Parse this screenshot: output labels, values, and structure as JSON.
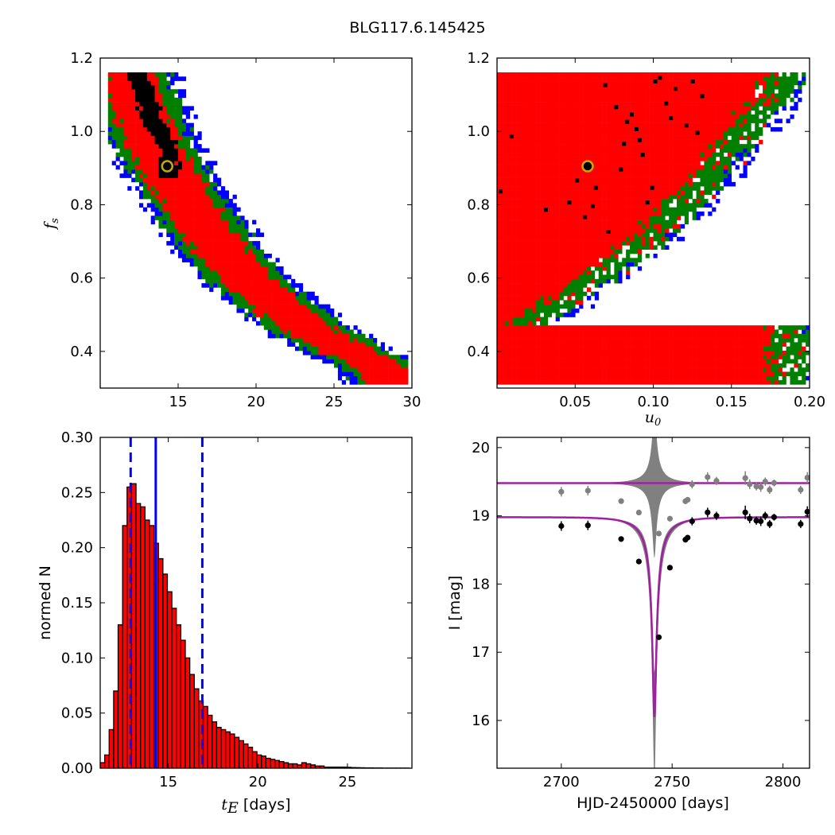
{
  "figure": {
    "suptitle": "BLG117.6.145425"
  },
  "colors": {
    "black": "#000000",
    "red": "#ff0000",
    "green": "#007f00",
    "blue": "#0000ff",
    "gray": "#808080",
    "magenta": "#a020a0",
    "marker_edge": "#c8a800"
  },
  "chart_data": [
    {
      "type": "heatmap",
      "panel": "tE_vs_fs",
      "xlim": [
        10,
        30
      ],
      "ylim": [
        0.3,
        1.2
      ],
      "xticks": [
        "15",
        "20",
        "25",
        "30"
      ],
      "yticks": [
        "0.4",
        "0.6",
        "0.8",
        "1.0",
        "1.2"
      ],
      "xlabel": "",
      "ylabel": "f_s",
      "ylabel_main": "f",
      "ylabel_sub": "s",
      "best_fit": {
        "x": 14.3,
        "y": 0.905
      },
      "band_center": [
        [
          11.8,
          1.15
        ],
        [
          12.5,
          1.05
        ],
        [
          13.3,
          0.96
        ],
        [
          14.3,
          0.88
        ],
        [
          15.5,
          0.8
        ],
        [
          16.8,
          0.72
        ],
        [
          18.2,
          0.64
        ],
        [
          19.8,
          0.57
        ],
        [
          21.5,
          0.51
        ],
        [
          23.5,
          0.45
        ],
        [
          25.5,
          0.4
        ],
        [
          27.5,
          0.36
        ],
        [
          28.5,
          0.33
        ]
      ],
      "band_half_widths_x": {
        "black": 0.8,
        "red": 1.7,
        "green": 2.5,
        "blue": 3.1
      },
      "black_core": [
        [
          12.3,
          1.15
        ],
        [
          13.0,
          1.06
        ],
        [
          13.6,
          1.0
        ],
        [
          14.3,
          0.94
        ]
      ]
    },
    {
      "type": "heatmap",
      "panel": "u0_vs_fs",
      "xlim": [
        0.0,
        0.2
      ],
      "ylim": [
        0.3,
        1.2
      ],
      "xticks": [
        "0.05",
        "0.10",
        "0.15",
        "0.20"
      ],
      "yticks": [
        "0.4",
        "0.6",
        "0.8",
        "1.0",
        "1.2"
      ],
      "xlabel": "u_0",
      "xlabel_main": "u",
      "xlabel_sub": "0",
      "ylabel": "",
      "best_fit": {
        "x": 0.058,
        "y": 0.905
      },
      "edge": [
        [
          0.0,
          0.46
        ],
        [
          0.02,
          0.5
        ],
        [
          0.04,
          0.56
        ],
        [
          0.06,
          0.62
        ],
        [
          0.08,
          0.68
        ],
        [
          0.1,
          0.76
        ],
        [
          0.12,
          0.85
        ],
        [
          0.14,
          0.96
        ],
        [
          0.16,
          1.06
        ],
        [
          0.175,
          1.15
        ]
      ],
      "scatter_black": [
        [
          0.001,
          0.83
        ],
        [
          0.008,
          0.98
        ],
        [
          0.03,
          0.78
        ],
        [
          0.045,
          0.8
        ],
        [
          0.05,
          0.86
        ],
        [
          0.055,
          0.76
        ],
        [
          0.06,
          0.79
        ],
        [
          0.062,
          0.84
        ],
        [
          0.07,
          0.72
        ],
        [
          0.078,
          0.89
        ],
        [
          0.08,
          0.96
        ],
        [
          0.082,
          1.02
        ],
        [
          0.085,
          1.04
        ],
        [
          0.088,
          1.0
        ],
        [
          0.09,
          0.97
        ],
        [
          0.092,
          0.93
        ],
        [
          0.095,
          0.8
        ],
        [
          0.098,
          0.84
        ],
        [
          0.1,
          1.13
        ],
        [
          0.103,
          1.14
        ],
        [
          0.107,
          1.07
        ],
        [
          0.11,
          1.03
        ],
        [
          0.113,
          1.11
        ],
        [
          0.12,
          1.01
        ],
        [
          0.124,
          1.13
        ],
        [
          0.127,
          0.99
        ],
        [
          0.13,
          1.09
        ],
        [
          0.075,
          1.06
        ],
        [
          0.068,
          1.12
        ]
      ]
    },
    {
      "type": "bar",
      "panel": "tE_histogram",
      "xlim": [
        11.2,
        28.6
      ],
      "ylim": [
        0.0,
        0.3
      ],
      "xticks": [
        "15",
        "20",
        "25"
      ],
      "yticks": [
        "0.00",
        "0.05",
        "0.10",
        "0.15",
        "0.20",
        "0.25",
        "0.30"
      ],
      "xlabel_math": "t",
      "xlabel_sub": "E",
      "xlabel_text": "[days]",
      "ylabel": "normed N",
      "bin_start": 11.2,
      "bin_width": 0.25,
      "values": [
        0.005,
        0.012,
        0.035,
        0.07,
        0.13,
        0.22,
        0.255,
        0.258,
        0.24,
        0.237,
        0.225,
        0.22,
        0.204,
        0.19,
        0.176,
        0.16,
        0.145,
        0.13,
        0.116,
        0.1,
        0.085,
        0.072,
        0.061,
        0.056,
        0.048,
        0.042,
        0.037,
        0.035,
        0.033,
        0.031,
        0.028,
        0.025,
        0.022,
        0.019,
        0.015,
        0.012,
        0.011,
        0.009,
        0.008,
        0.007,
        0.006,
        0.005,
        0.004,
        0.004,
        0.003,
        0.005,
        0.004,
        0.003,
        0.002,
        0.002,
        0.001,
        0.001,
        0.001,
        0.001,
        0.001,
        0.0008,
        0.0006,
        0.0005,
        0.0004,
        0.0003,
        0.0003,
        0.0002,
        0.0002,
        0.0001,
        0.0001,
        0.0001,
        0.0001,
        0.0001,
        0.0001
      ],
      "median": 14.3,
      "interval": [
        12.9,
        16.9
      ],
      "bar_color": "#ff0000"
    },
    {
      "type": "line",
      "panel": "light_curve",
      "xlim": [
        2671,
        2812
      ],
      "ylim": [
        20.15,
        15.3
      ],
      "xticks": [
        "2700",
        "2750",
        "2800"
      ],
      "yticks": [
        "16",
        "17",
        "18",
        "19",
        "20"
      ],
      "xlabel": "HJD-2450000 [days]",
      "ylabel": "I [mag]",
      "model": {
        "t0": 2742.0,
        "base": 18.98,
        "peak": 16.05
      },
      "residual_baseline": 19.48,
      "observations": [
        {
          "t": 2700,
          "mag": 18.85,
          "err": 0.07
        },
        {
          "t": 2712,
          "mag": 18.86,
          "err": 0.07
        },
        {
          "t": 2727,
          "mag": 18.66,
          "err": 0.04
        },
        {
          "t": 2735,
          "mag": 18.33,
          "err": 0.03
        },
        {
          "t": 2744,
          "mag": 17.22,
          "err": 0.02
        },
        {
          "t": 2749,
          "mag": 18.24,
          "err": 0.03
        },
        {
          "t": 2756,
          "mag": 18.65,
          "err": 0.04
        },
        {
          "t": 2757,
          "mag": 18.68,
          "err": 0.04
        },
        {
          "t": 2759,
          "mag": 18.92,
          "err": 0.06
        },
        {
          "t": 2766,
          "mag": 19.05,
          "err": 0.07
        },
        {
          "t": 2770,
          "mag": 19.0,
          "err": 0.06
        },
        {
          "t": 2783,
          "mag": 19.05,
          "err": 0.1
        },
        {
          "t": 2785,
          "mag": 18.96,
          "err": 0.07
        },
        {
          "t": 2788,
          "mag": 18.93,
          "err": 0.06
        },
        {
          "t": 2790,
          "mag": 18.92,
          "err": 0.07
        },
        {
          "t": 2792,
          "mag": 19.0,
          "err": 0.06
        },
        {
          "t": 2794,
          "mag": 18.88,
          "err": 0.06
        },
        {
          "t": 2796,
          "mag": 18.98,
          "err": 0.05
        },
        {
          "t": 2808,
          "mag": 18.88,
          "err": 0.06
        },
        {
          "t": 2811,
          "mag": 19.06,
          "err": 0.08
        }
      ]
    }
  ]
}
